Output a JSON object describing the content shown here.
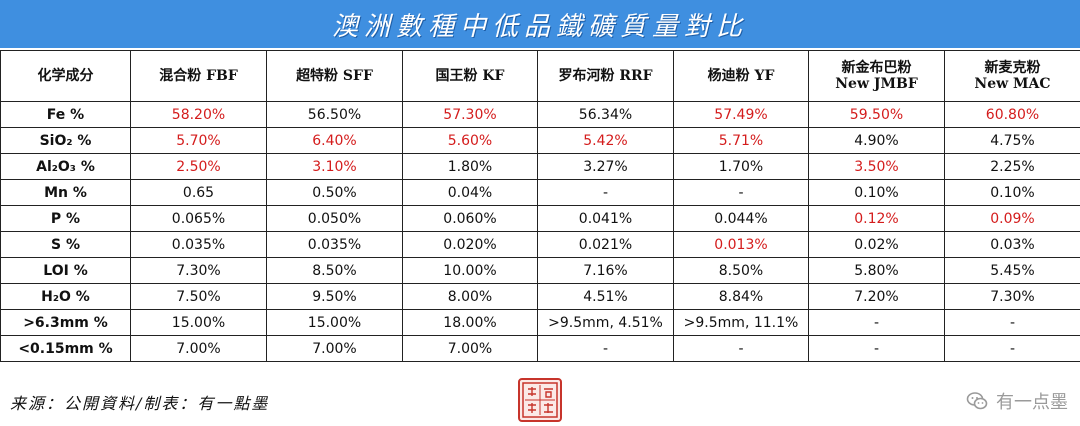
{
  "title": "澳洲數種中低品鐵礦質量對比",
  "table": {
    "headers": [
      {
        "line1": "化学成分",
        "line2": ""
      },
      {
        "line1": "混合粉 FBF",
        "line2": ""
      },
      {
        "line1": "超特粉 SFF",
        "line2": ""
      },
      {
        "line1": "国王粉 KF",
        "line2": ""
      },
      {
        "line1": "罗布河粉 RRF",
        "line2": ""
      },
      {
        "line1": "杨迪粉 YF",
        "line2": ""
      },
      {
        "line1": "新金布巴粉",
        "line2": "New JMBF"
      },
      {
        "line1": "新麦克粉",
        "line2": "New MAC"
      }
    ],
    "rows": [
      {
        "label": "Fe %",
        "cells": [
          {
            "v": "58.20%",
            "red": true
          },
          {
            "v": "56.50%",
            "red": false
          },
          {
            "v": "57.30%",
            "red": true
          },
          {
            "v": "56.34%",
            "red": false
          },
          {
            "v": "57.49%",
            "red": true
          },
          {
            "v": "59.50%",
            "red": true
          },
          {
            "v": "60.80%",
            "red": true
          }
        ]
      },
      {
        "label": "SiO₂ %",
        "cells": [
          {
            "v": "5.70%",
            "red": true
          },
          {
            "v": "6.40%",
            "red": true
          },
          {
            "v": "5.60%",
            "red": true
          },
          {
            "v": "5.42%",
            "red": true
          },
          {
            "v": "5.71%",
            "red": true
          },
          {
            "v": "4.90%",
            "red": false
          },
          {
            "v": "4.75%",
            "red": false
          }
        ]
      },
      {
        "label": "Al₂O₃ %",
        "cells": [
          {
            "v": "2.50%",
            "red": true
          },
          {
            "v": "3.10%",
            "red": true
          },
          {
            "v": "1.80%",
            "red": false
          },
          {
            "v": "3.27%",
            "red": false
          },
          {
            "v": "1.70%",
            "red": false
          },
          {
            "v": "3.50%",
            "red": true
          },
          {
            "v": "2.25%",
            "red": false
          }
        ]
      },
      {
        "label": "Mn %",
        "cells": [
          {
            "v": "0.65",
            "red": false
          },
          {
            "v": "0.50%",
            "red": false
          },
          {
            "v": "0.04%",
            "red": false
          },
          {
            "v": "-",
            "red": false
          },
          {
            "v": "-",
            "red": false
          },
          {
            "v": "0.10%",
            "red": false
          },
          {
            "v": "0.10%",
            "red": false
          }
        ]
      },
      {
        "label": "P %",
        "cells": [
          {
            "v": "0.065%",
            "red": false
          },
          {
            "v": "0.050%",
            "red": false
          },
          {
            "v": "0.060%",
            "red": false
          },
          {
            "v": "0.041%",
            "red": false
          },
          {
            "v": "0.044%",
            "red": false
          },
          {
            "v": "0.12%",
            "red": true
          },
          {
            "v": "0.09%",
            "red": true
          }
        ]
      },
      {
        "label": "S %",
        "cells": [
          {
            "v": "0.035%",
            "red": false
          },
          {
            "v": "0.035%",
            "red": false
          },
          {
            "v": "0.020%",
            "red": false
          },
          {
            "v": "0.021%",
            "red": false
          },
          {
            "v": "0.013%",
            "red": true
          },
          {
            "v": "0.02%",
            "red": false
          },
          {
            "v": "0.03%",
            "red": false
          }
        ]
      },
      {
        "label": "LOI %",
        "cells": [
          {
            "v": "7.30%",
            "red": false
          },
          {
            "v": "8.50%",
            "red": false
          },
          {
            "v": "10.00%",
            "red": false
          },
          {
            "v": "7.16%",
            "red": false
          },
          {
            "v": "8.50%",
            "red": false
          },
          {
            "v": "5.80%",
            "red": false
          },
          {
            "v": "5.45%",
            "red": false
          }
        ]
      },
      {
        "label": "H₂O %",
        "cells": [
          {
            "v": "7.50%",
            "red": false
          },
          {
            "v": "9.50%",
            "red": false
          },
          {
            "v": "8.00%",
            "red": false
          },
          {
            "v": "4.51%",
            "red": false
          },
          {
            "v": "8.84%",
            "red": false
          },
          {
            "v": "7.20%",
            "red": false
          },
          {
            "v": "7.30%",
            "red": false
          }
        ]
      },
      {
        "label": ">6.3mm %",
        "cells": [
          {
            "v": "15.00%",
            "red": false
          },
          {
            "v": "15.00%",
            "red": false
          },
          {
            "v": "18.00%",
            "red": false
          },
          {
            "v": ">9.5mm, 4.51%",
            "red": false
          },
          {
            "v": ">9.5mm, 11.1%",
            "red": false
          },
          {
            "v": "-",
            "red": false
          },
          {
            "v": "-",
            "red": false
          }
        ]
      },
      {
        "label": "<0.15mm %",
        "cells": [
          {
            "v": "7.00%",
            "red": false
          },
          {
            "v": "7.00%",
            "red": false
          },
          {
            "v": "7.00%",
            "red": false
          },
          {
            "v": "-",
            "red": false
          },
          {
            "v": "-",
            "red": false
          },
          {
            "v": "-",
            "red": false
          },
          {
            "v": "-",
            "red": false
          }
        ]
      }
    ]
  },
  "footer": {
    "source": "来源：公開資料/制表：有一點墨",
    "brand": "有一点墨",
    "brand_icon": "wechat-icon",
    "seal_icon": "seal-stamp-icon",
    "seal_text": "有一點墨"
  },
  "colors": {
    "title_bg": "#3f8fe0",
    "highlight": "#d41c1c",
    "seal": "#c7342b",
    "brand": "#9a9a9a"
  }
}
